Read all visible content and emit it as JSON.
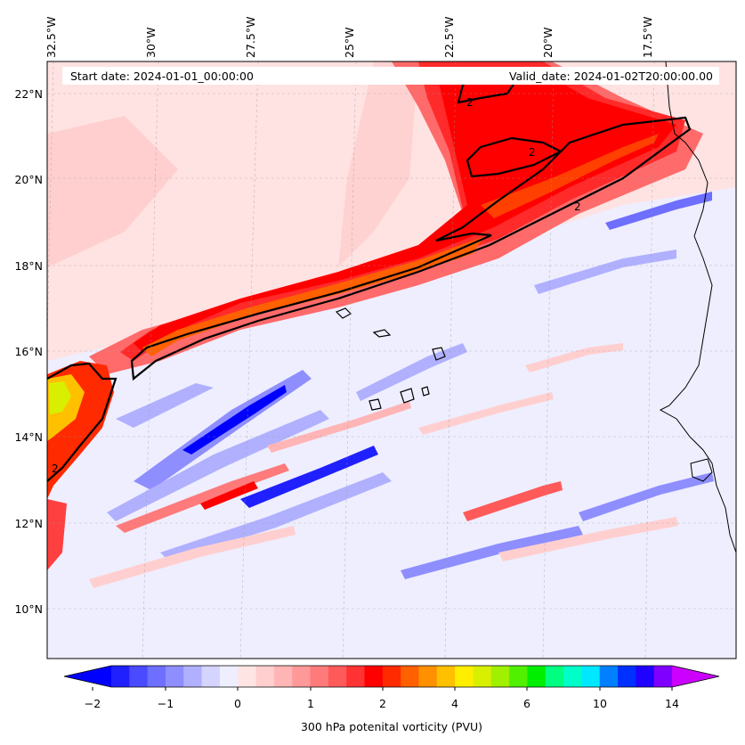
{
  "title_box": {
    "start_date": "Start date: 2024-01-01_00:00:00",
    "valid_date": "Valid_date: 2024-01-02T20:00:00.00"
  },
  "longitude_labels": [
    "32.5°W",
    "30°W",
    "27.5°W",
    "25°W",
    "22.5°W",
    "20°W",
    "17.5°W"
  ],
  "latitude_labels": [
    "22°N",
    "20°N",
    "18°N",
    "16°N",
    "14°N",
    "12°N",
    "10°N"
  ],
  "contour": {
    "value_label": "2",
    "labels": [
      "2",
      "2",
      "2",
      "2"
    ]
  },
  "colorbar": {
    "title": "300 hPa potenital vorticity (PVU)",
    "ticks": [
      "−2",
      "−1",
      "0",
      "1",
      "2",
      "4",
      "6",
      "10",
      "14"
    ],
    "colors": [
      "#0000ff",
      "#2020ff",
      "#4a4aff",
      "#6e6eff",
      "#8e8eff",
      "#b0b0ff",
      "#d4d4ff",
      "#eeeeff",
      "#ffe4e4",
      "#ffcfcf",
      "#ffb5b5",
      "#ff9999",
      "#ff7a7a",
      "#ff5a5a",
      "#ff3333",
      "#ff0000",
      "#ff2a00",
      "#ff6000",
      "#ff9000",
      "#ffc000",
      "#ffee00",
      "#d8f000",
      "#a0f000",
      "#50f000",
      "#00ee00",
      "#00ff80",
      "#00ffc8",
      "#00e8ff",
      "#0080ff",
      "#0030ff",
      "#2000ff",
      "#8000ff",
      "#cc00ff"
    ]
  }
}
